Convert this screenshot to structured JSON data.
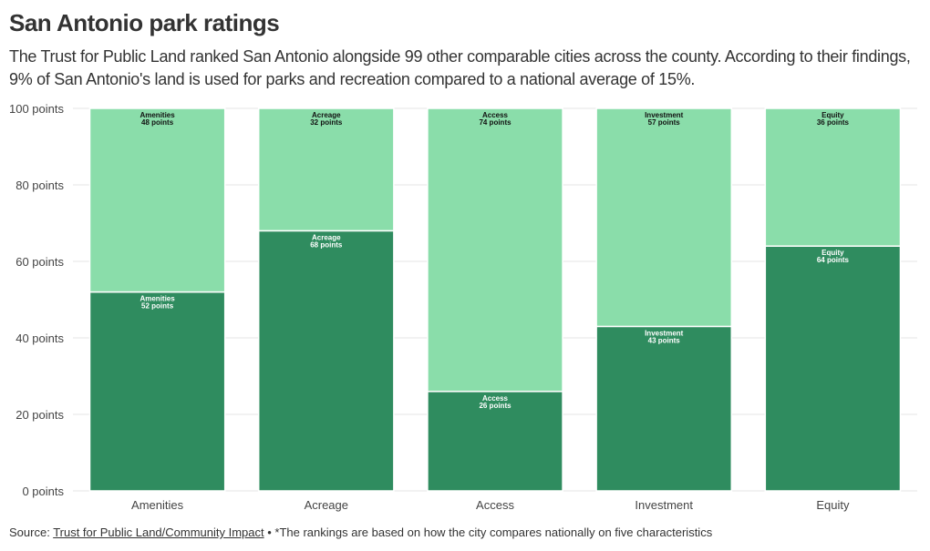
{
  "title": "San Antonio park ratings",
  "subtitle": "The Trust for Public Land ranked San Antonio alongside 99 other comparable cities across the county. According to their findings, 9% of San Antonio's land is used for parks and recreation compared to a national average of 15%.",
  "source": {
    "prefix": "Source: ",
    "link_text": "Trust for Public Land/Community Impact",
    "suffix": " • *The rankings are based on how the city compares nationally on five characteristics"
  },
  "chart_data": {
    "type": "bar",
    "stacked": true,
    "categories": [
      "Amenities",
      "Acreage",
      "Access",
      "Investment",
      "Equity"
    ],
    "series": [
      {
        "name": "score",
        "color": "#2f8c5f",
        "label_color": "#ffffff",
        "values": [
          52,
          68,
          26,
          43,
          64
        ]
      },
      {
        "name": "remaining",
        "color": "#8addaa",
        "label_color": "#111111",
        "values": [
          48,
          32,
          74,
          57,
          36
        ]
      }
    ],
    "value_suffix": " points",
    "ylim": [
      0,
      100
    ],
    "yticks": [
      0,
      20,
      40,
      60,
      80,
      100
    ],
    "ytick_labels": [
      "0 points",
      "20 points",
      "40 points",
      "60 points",
      "80 points",
      "100 points"
    ],
    "grid": true,
    "xlabel": "",
    "ylabel": ""
  }
}
